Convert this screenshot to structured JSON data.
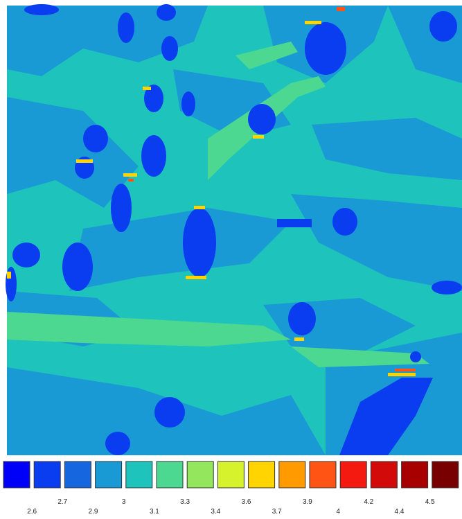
{
  "colorbar": {
    "colors": [
      "#0000f8",
      "#0a3cf0",
      "#1666e0",
      "#1a9ad4",
      "#1ec4bc",
      "#4cd890",
      "#94e65c",
      "#d6f22c",
      "#ffd400",
      "#ff9a00",
      "#ff5414",
      "#f41a10",
      "#d20a0a",
      "#a80000",
      "#780000"
    ],
    "ticks": [
      2.6,
      2.7,
      2.9,
      3,
      3.1,
      3.3,
      3.4,
      3.6,
      3.7,
      3.9,
      4,
      4.2,
      4.4,
      4.5
    ]
  }
}
